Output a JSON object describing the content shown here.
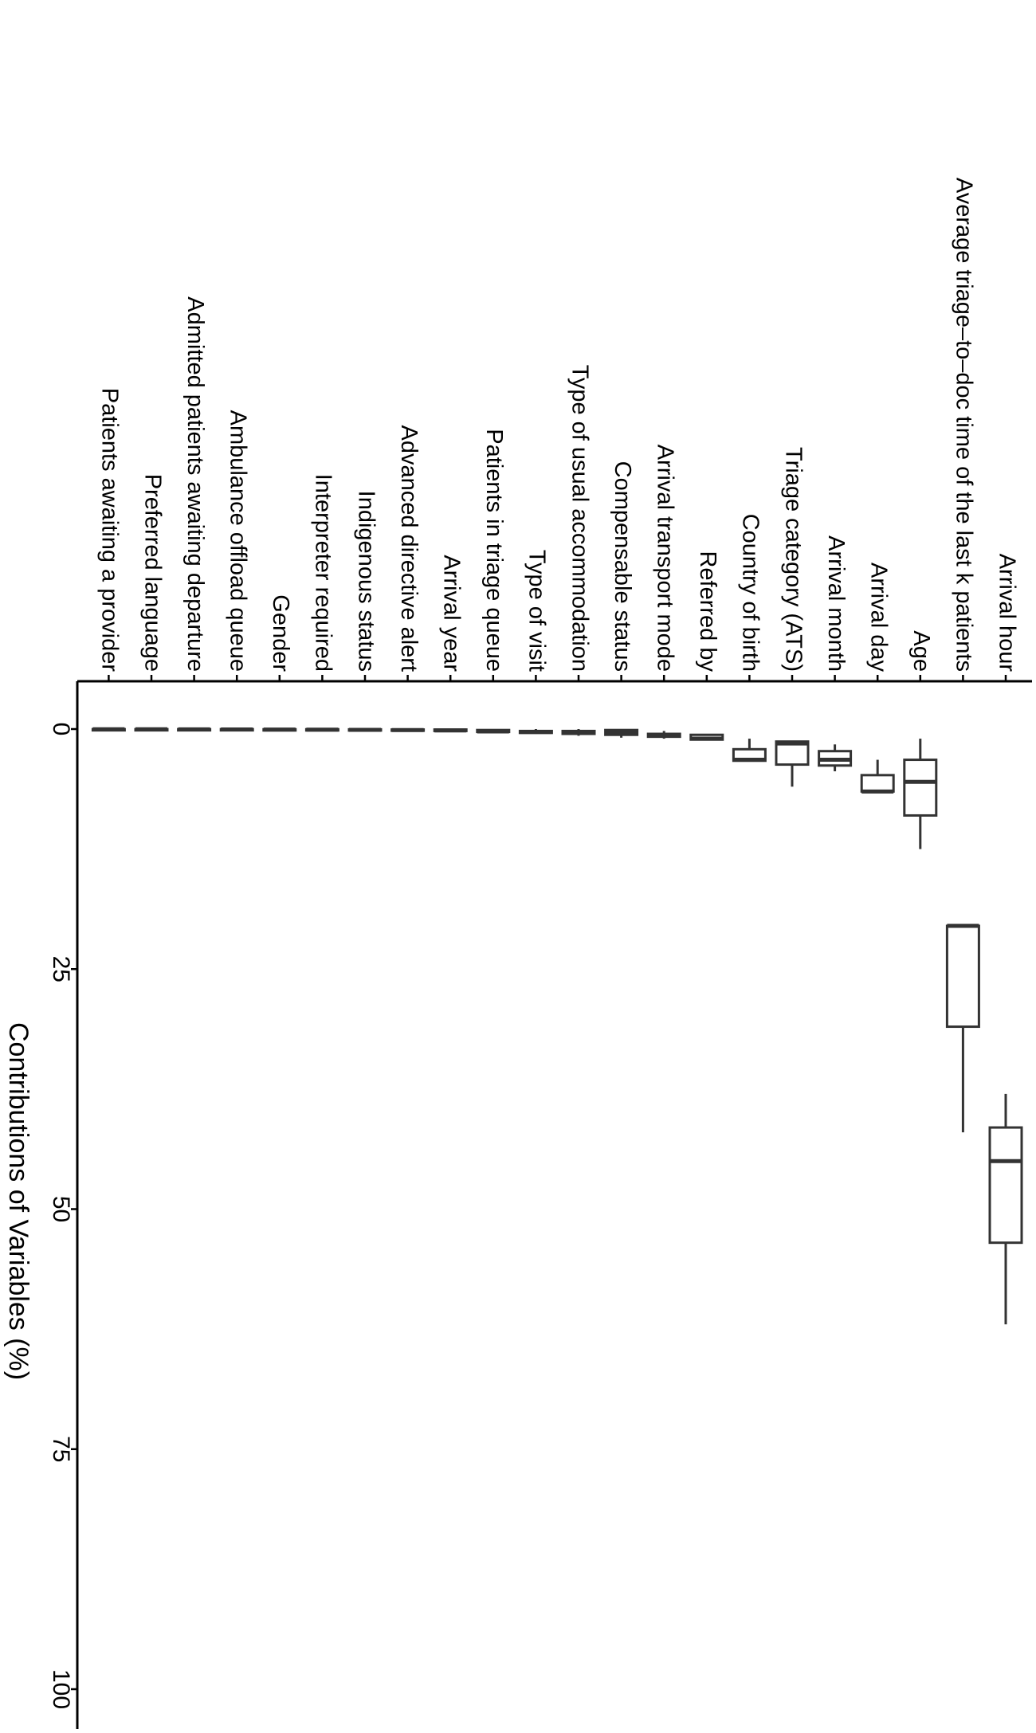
{
  "chart_data": {
    "type": "box",
    "xlabel": "Contributions of Variables (%)",
    "ylabel": "",
    "title": "",
    "xlim": [
      -1,
      104
    ],
    "x_ticks": [
      0,
      25,
      50,
      75,
      100
    ],
    "x_tick_labels": [
      "0",
      "25",
      "50",
      "75",
      "100"
    ],
    "categories": [
      "Arrival hour",
      "Average triage–to–doc time of the last k patients",
      "Age",
      "Arrival day",
      "Arrival month",
      "Triage category (ATS)",
      "Country of birth",
      "Referred by",
      "Arrival transport mode",
      "Compensable status",
      "Type of usual accommodation",
      "Type of visit",
      "Patients in triage queue",
      "Arrival year",
      "Advanced directive alert",
      "Indigenous status",
      "Interpreter required",
      "Gender",
      "Ambulance offload queue",
      "Admitted patients awaiting departure",
      "Preferred language",
      "Patients awaiting a provider"
    ],
    "boxes": [
      {
        "category": "Arrival hour",
        "min": 38,
        "q1": 41.5,
        "median": 45,
        "q3": 53.5,
        "max": 62
      },
      {
        "category": "Average triage–to–doc time of the last k patients",
        "min": 20.5,
        "q1": 20.5,
        "median": 20.5,
        "q3": 31,
        "max": 42
      },
      {
        "category": "Age",
        "min": 1,
        "q1": 3.2,
        "median": 5.5,
        "q3": 9,
        "max": 12.5
      },
      {
        "category": "Arrival day",
        "min": 3.2,
        "q1": 4.8,
        "median": 6.5,
        "q3": 6.5,
        "max": 6.5
      },
      {
        "category": "Arrival month",
        "min": 1.6,
        "q1": 2.3,
        "median": 3.2,
        "q3": 3.8,
        "max": 4.4
      },
      {
        "category": "Triage category (ATS)",
        "min": 1.3,
        "q1": 1.3,
        "median": 1.5,
        "q3": 3.7,
        "max": 6
      },
      {
        "category": "Country of birth",
        "min": 1.0,
        "q1": 2.1,
        "median": 3.2,
        "q3": 3.3,
        "max": 3.3
      },
      {
        "category": "Referred by",
        "min": 0.5,
        "q1": 0.6,
        "median": 1.0,
        "q3": 1.1,
        "max": 1.1
      },
      {
        "category": "Arrival transport mode",
        "min": 0.2,
        "q1": 0.5,
        "median": 0.7,
        "q3": 0.8,
        "max": 1.0
      },
      {
        "category": "Compensable status",
        "min": 0.0,
        "q1": 0.1,
        "median": 0.4,
        "q3": 0.6,
        "max": 0.9
      },
      {
        "category": "Type of usual accommodation",
        "min": 0.0,
        "q1": 0.2,
        "median": 0.4,
        "q3": 0.5,
        "max": 0.7
      },
      {
        "category": "Type of visit",
        "min": 0.0,
        "q1": 0.2,
        "median": 0.3,
        "q3": 0.4,
        "max": 0.5
      },
      {
        "category": "Patients in triage queue",
        "min": 0.0,
        "q1": 0.1,
        "median": 0.25,
        "q3": 0.3,
        "max": 0.4
      },
      {
        "category": "Arrival year",
        "min": 0.0,
        "q1": 0.05,
        "median": 0.15,
        "q3": 0.2,
        "max": 0.25
      },
      {
        "category": "Advanced directive alert",
        "min": 0.0,
        "q1": 0.05,
        "median": 0.1,
        "q3": 0.15,
        "max": 0.2
      },
      {
        "category": "Indigenous status",
        "min": 0.0,
        "q1": 0.03,
        "median": 0.08,
        "q3": 0.12,
        "max": 0.15
      },
      {
        "category": "Interpreter required",
        "min": 0.0,
        "q1": 0.02,
        "median": 0.06,
        "q3": 0.1,
        "max": 0.12
      },
      {
        "category": "Gender",
        "min": 0.0,
        "q1": 0.02,
        "median": 0.05,
        "q3": 0.08,
        "max": 0.1
      },
      {
        "category": "Ambulance offload queue",
        "min": 0.0,
        "q1": 0.01,
        "median": 0.04,
        "q3": 0.07,
        "max": 0.09
      },
      {
        "category": "Admitted patients awaiting departure",
        "min": 0.0,
        "q1": 0.01,
        "median": 0.03,
        "q3": 0.06,
        "max": 0.08
      },
      {
        "category": "Preferred language",
        "min": 0.0,
        "q1": 0.01,
        "median": 0.02,
        "q3": 0.05,
        "max": 0.07
      },
      {
        "category": "Patients awaiting a provider",
        "min": 0.0,
        "q1": 0.01,
        "median": 0.02,
        "q3": 0.04,
        "max": 0.06
      }
    ],
    "orientation": "rotated-90-clockwise",
    "grid": false,
    "legend": "none"
  }
}
